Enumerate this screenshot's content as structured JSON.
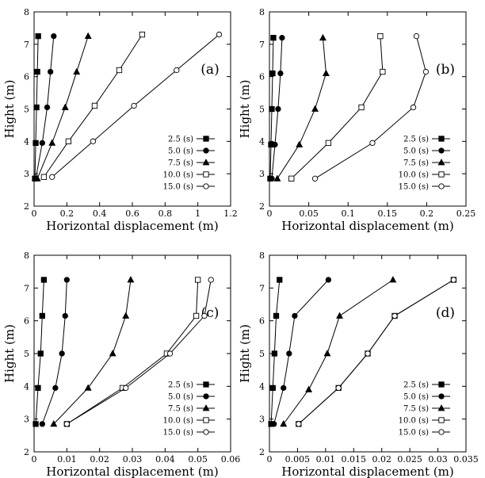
{
  "chart_data": [
    {
      "type": "line",
      "panel_label": "(a)",
      "xlabel": "Horizontal displacement (m)",
      "ylabel": "Hight (m)",
      "xlim": [
        0,
        1.2
      ],
      "ylim": [
        2,
        8
      ],
      "xticks": [
        0,
        0.2,
        0.4,
        0.6,
        0.8,
        1,
        1.2
      ],
      "xtick_labels": [
        "0",
        "0.2",
        "0.4",
        "0.6",
        "0.8",
        "1",
        "1.2"
      ],
      "yticks": [
        2,
        3,
        4,
        5,
        6,
        7,
        8
      ],
      "ytick_labels": [
        "2",
        "3",
        "4",
        "5",
        "6",
        "7",
        "8"
      ],
      "legend_position": "bottom-right",
      "series": [
        {
          "name": "2.5 (s)",
          "marker": "square-filled",
          "x": [
            0.005,
            0.01,
            0.015,
            0.02,
            0.025
          ],
          "y": [
            2.85,
            3.95,
            5.05,
            6.15,
            7.25
          ]
        },
        {
          "name": "5.0 (s)",
          "marker": "circle-filled",
          "x": [
            0.01,
            0.05,
            0.08,
            0.1,
            0.12
          ],
          "y": [
            2.85,
            3.95,
            5.05,
            6.15,
            7.25
          ]
        },
        {
          "name": "7.5 (s)",
          "marker": "triangle-filled",
          "x": [
            0.02,
            0.11,
            0.19,
            0.26,
            0.33
          ],
          "y": [
            2.85,
            3.95,
            5.05,
            6.15,
            7.25
          ]
        },
        {
          "name": "10.0 (s)",
          "marker": "square-open",
          "x": [
            0.06,
            0.21,
            0.37,
            0.52,
            0.66
          ],
          "y": [
            2.9,
            4.0,
            5.1,
            6.2,
            7.3
          ]
        },
        {
          "name": "15.0 (s)",
          "marker": "circle-open",
          "x": [
            0.11,
            0.36,
            0.61,
            0.87,
            1.13
          ],
          "y": [
            2.9,
            4.0,
            5.1,
            6.2,
            7.3
          ]
        }
      ]
    },
    {
      "type": "line",
      "panel_label": "(b)",
      "xlabel": "Horizontal displacement (m)",
      "ylabel": "Hight (m)",
      "xlim": [
        0,
        0.25
      ],
      "ylim": [
        2,
        8
      ],
      "xticks": [
        0,
        0.05,
        0.1,
        0.15,
        0.2,
        0.25
      ],
      "xtick_labels": [
        "0",
        "0.05",
        "0.1",
        "0.15",
        "0.2",
        "0.25"
      ],
      "yticks": [
        2,
        3,
        4,
        5,
        6,
        7,
        8
      ],
      "ytick_labels": [
        "2",
        "3",
        "4",
        "5",
        "6",
        "7",
        "8"
      ],
      "legend_position": "bottom-right",
      "series": [
        {
          "name": "2.5 (s)",
          "marker": "square-filled",
          "x": [
            0.001,
            0.002,
            0.003,
            0.004,
            0.005
          ],
          "y": [
            2.85,
            3.9,
            5.0,
            6.1,
            7.2
          ]
        },
        {
          "name": "5.0 (s)",
          "marker": "circle-filled",
          "x": [
            0.003,
            0.007,
            0.011,
            0.014,
            0.016
          ],
          "y": [
            2.85,
            3.9,
            5.0,
            6.1,
            7.2
          ]
        },
        {
          "name": "7.5 (s)",
          "marker": "triangle-filled",
          "x": [
            0.01,
            0.038,
            0.058,
            0.072,
            0.068
          ],
          "y": [
            2.85,
            3.9,
            5.0,
            6.1,
            7.2
          ]
        },
        {
          "name": "10.0 (s)",
          "marker": "square-open",
          "x": [
            0.028,
            0.075,
            0.117,
            0.144,
            0.141
          ],
          "y": [
            2.85,
            3.95,
            5.05,
            6.15,
            7.25
          ]
        },
        {
          "name": "15.0 (s)",
          "marker": "circle-open",
          "x": [
            0.058,
            0.131,
            0.183,
            0.199,
            0.187
          ],
          "y": [
            2.85,
            3.95,
            5.05,
            6.15,
            7.25
          ]
        }
      ]
    },
    {
      "type": "line",
      "panel_label": "(c)",
      "xlabel": "Horizontal displacement (m)",
      "ylabel": "Hight (m)",
      "xlim": [
        0,
        0.06
      ],
      "ylim": [
        2,
        8
      ],
      "xticks": [
        0,
        0.01,
        0.02,
        0.03,
        0.04,
        0.05,
        0.06
      ],
      "xtick_labels": [
        "0",
        "0.01",
        "0.02",
        "0.03",
        "0.04",
        "0.05",
        "0.06"
      ],
      "yticks": [
        2,
        3,
        4,
        5,
        6,
        7,
        8
      ],
      "ytick_labels": [
        "2",
        "3",
        "4",
        "5",
        "6",
        "7",
        "8"
      ],
      "legend_position": "bottom-right",
      "series": [
        {
          "name": "2.5 (s)",
          "marker": "square-filled",
          "x": [
            0.0005,
            0.0012,
            0.002,
            0.0025,
            0.003
          ],
          "y": [
            2.85,
            3.95,
            5.0,
            6.15,
            7.25
          ]
        },
        {
          "name": "5.0 (s)",
          "marker": "circle-filled",
          "x": [
            0.0025,
            0.0065,
            0.0085,
            0.0095,
            0.01
          ],
          "y": [
            2.85,
            3.95,
            5.0,
            6.15,
            7.25
          ]
        },
        {
          "name": "7.5 (s)",
          "marker": "triangle-filled",
          "x": [
            0.006,
            0.0165,
            0.024,
            0.028,
            0.0295
          ],
          "y": [
            2.85,
            3.95,
            5.0,
            6.15,
            7.25
          ]
        },
        {
          "name": "10.0 (s)",
          "marker": "square-open",
          "x": [
            0.01,
            0.027,
            0.0405,
            0.0495,
            0.05
          ],
          "y": [
            2.85,
            3.95,
            5.0,
            6.15,
            7.25
          ]
        },
        {
          "name": "15.0 (s)",
          "marker": "circle-open",
          "x": [
            0.01,
            0.028,
            0.0415,
            0.052,
            0.054
          ],
          "y": [
            2.85,
            3.95,
            5.0,
            6.15,
            7.25
          ]
        }
      ]
    },
    {
      "type": "line",
      "panel_label": "(d)",
      "xlabel": "Horizontal displacement (m)",
      "ylabel": "Hight (m)",
      "xlim": [
        0,
        0.035
      ],
      "ylim": [
        2,
        8
      ],
      "xticks": [
        0,
        0.005,
        0.01,
        0.015,
        0.02,
        0.025,
        0.03,
        0.035
      ],
      "xtick_labels": [
        "0",
        "0.005",
        "0.01",
        "0.015",
        "0.02",
        "0.025",
        "0.03",
        "0.035"
      ],
      "yticks": [
        2,
        3,
        4,
        5,
        6,
        7,
        8
      ],
      "ytick_labels": [
        "2",
        "3",
        "4",
        "5",
        "6",
        "7",
        "8"
      ],
      "legend_position": "bottom-right",
      "series": [
        {
          "name": "2.5 (s)",
          "marker": "square-filled",
          "x": [
            0.0003,
            0.0006,
            0.0009,
            0.0012,
            0.0018
          ],
          "y": [
            2.85,
            3.95,
            5.0,
            6.15,
            7.25
          ]
        },
        {
          "name": "5.0 (s)",
          "marker": "circle-filled",
          "x": [
            0.0008,
            0.0025,
            0.0035,
            0.0045,
            0.0105
          ],
          "y": [
            2.85,
            3.95,
            5.0,
            6.15,
            7.25
          ]
        },
        {
          "name": "7.5 (s)",
          "marker": "triangle-filled",
          "x": [
            0.0025,
            0.007,
            0.0103,
            0.0125,
            0.022
          ],
          "y": [
            2.85,
            3.9,
            5.0,
            6.15,
            7.25
          ]
        },
        {
          "name": "10.0 (s)",
          "marker": "square-open",
          "x": [
            0.0052,
            0.0123,
            0.0175,
            0.0223,
            0.0328
          ],
          "y": [
            2.85,
            3.95,
            5.0,
            6.15,
            7.25
          ]
        },
        {
          "name": "15.0 (s)",
          "marker": "circle-open",
          "x": [
            0.0052,
            0.0123,
            0.0175,
            0.0223,
            0.0328
          ],
          "y": [
            2.85,
            3.95,
            5.0,
            6.15,
            7.25
          ]
        }
      ]
    }
  ]
}
